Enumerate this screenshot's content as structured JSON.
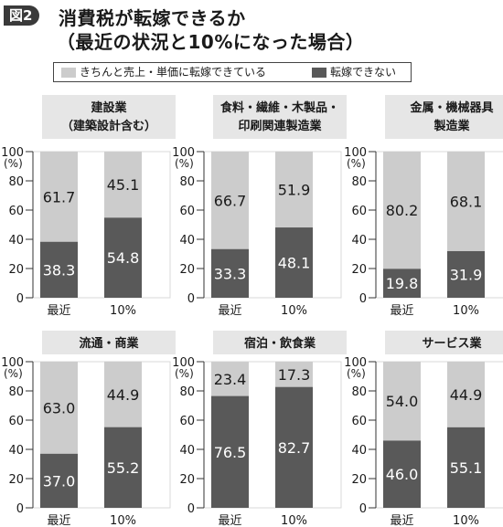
{
  "figure_label": "図2",
  "title_line1": "消費税が転嫁できるか",
  "title_line2": "（最近の状況と10%になった場合）",
  "legend": {
    "items": [
      {
        "label": "きちんと売上・単価に転嫁できている",
        "color": "#cccccc"
      },
      {
        "label": "転嫁できない",
        "color": "#595959"
      }
    ]
  },
  "colors": {
    "top": "#cccccc",
    "bottom": "#595959",
    "panel_title_bg": "#e6e6e6"
  },
  "chart_data": [
    {
      "type": "bar",
      "stacked": true,
      "title": "建設業\n（建築設計含む）",
      "categories": [
        "最近",
        "10%"
      ],
      "ylabel": "(%)",
      "ylim": [
        0,
        100
      ],
      "yticks": [
        0,
        20,
        40,
        60,
        80,
        100
      ],
      "series": [
        {
          "name": "転嫁できない",
          "values": [
            38.3,
            54.8
          ]
        },
        {
          "name": "きちんと売上・単価に転嫁できている",
          "values": [
            61.7,
            45.1
          ]
        }
      ]
    },
    {
      "type": "bar",
      "stacked": true,
      "title": "食料・繊維・木製品・\n印刷関連製造業",
      "categories": [
        "最近",
        "10%"
      ],
      "ylabel": "(%)",
      "ylim": [
        0,
        100
      ],
      "yticks": [
        0,
        20,
        40,
        60,
        80,
        100
      ],
      "series": [
        {
          "name": "転嫁できない",
          "values": [
            33.3,
            48.1
          ]
        },
        {
          "name": "きちんと売上・単価に転嫁できている",
          "values": [
            66.7,
            51.9
          ]
        }
      ]
    },
    {
      "type": "bar",
      "stacked": true,
      "title": "金属・機械器具\n製造業",
      "categories": [
        "最近",
        "10%"
      ],
      "ylabel": "(%)",
      "ylim": [
        0,
        100
      ],
      "yticks": [
        0,
        20,
        40,
        60,
        80,
        100
      ],
      "series": [
        {
          "name": "転嫁できない",
          "values": [
            19.8,
            31.9
          ]
        },
        {
          "name": "きちんと売上・単価に転嫁できている",
          "values": [
            80.2,
            68.1
          ]
        }
      ]
    },
    {
      "type": "bar",
      "stacked": true,
      "title": "流通・商業",
      "categories": [
        "最近",
        "10%"
      ],
      "ylabel": "(%)",
      "ylim": [
        0,
        100
      ],
      "yticks": [
        0,
        20,
        40,
        60,
        80,
        100
      ],
      "series": [
        {
          "name": "転嫁できない",
          "values": [
            37.0,
            55.2
          ]
        },
        {
          "name": "きちんと売上・単価に転嫁できている",
          "values": [
            63.0,
            44.9
          ]
        }
      ]
    },
    {
      "type": "bar",
      "stacked": true,
      "title": "宿泊・飲食業",
      "categories": [
        "最近",
        "10%"
      ],
      "ylabel": "(%)",
      "ylim": [
        0,
        100
      ],
      "yticks": [
        0,
        20,
        40,
        60,
        80,
        100
      ],
      "series": [
        {
          "name": "転嫁できない",
          "values": [
            76.5,
            82.7
          ]
        },
        {
          "name": "きちんと売上・単価に転嫁できている",
          "values": [
            23.4,
            17.3
          ]
        }
      ]
    },
    {
      "type": "bar",
      "stacked": true,
      "title": "サービス業",
      "categories": [
        "最近",
        "10%"
      ],
      "ylabel": "(%)",
      "ylim": [
        0,
        100
      ],
      "yticks": [
        0,
        20,
        40,
        60,
        80,
        100
      ],
      "series": [
        {
          "name": "転嫁できない",
          "values": [
            46.0,
            55.1
          ]
        },
        {
          "name": "きちんと売上・単価に転嫁できている",
          "values": [
            54.0,
            44.9
          ]
        }
      ]
    }
  ]
}
